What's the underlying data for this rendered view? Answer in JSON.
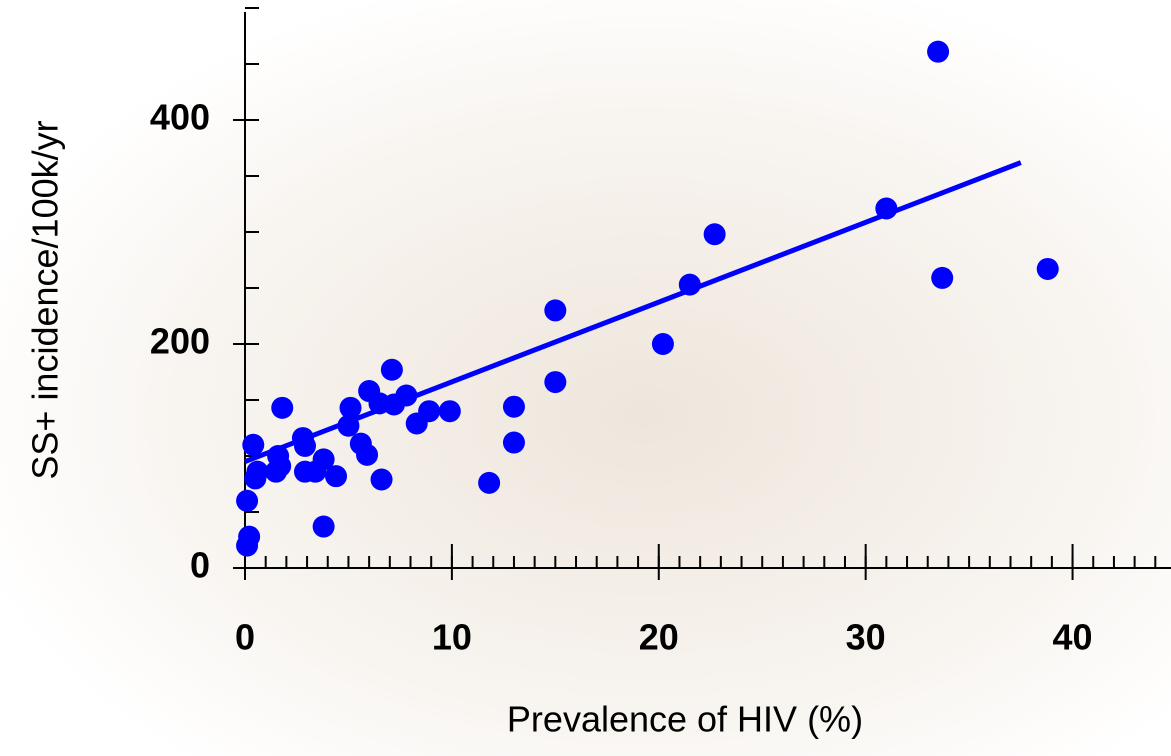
{
  "chart_data": {
    "type": "scatter",
    "xlabel": "Prevalence of HIV (%)",
    "ylabel": "SS+ incidence/100k/yr",
    "xlim": [
      0,
      45
    ],
    "ylim": [
      0,
      500
    ],
    "xticks": [
      0,
      10,
      20,
      30,
      40
    ],
    "yticks": [
      0,
      200,
      400
    ],
    "xminorticks": [
      0,
      1,
      2,
      3,
      4,
      5,
      6,
      7,
      8,
      9,
      10,
      11,
      12,
      13,
      14,
      15,
      16,
      17,
      18,
      19,
      20,
      21,
      22,
      23,
      24,
      25,
      26,
      27,
      28,
      29,
      30,
      31,
      32,
      33,
      34,
      35,
      36,
      37,
      38,
      39,
      40,
      41,
      42,
      43,
      44,
      45
    ],
    "yminorticks": [
      0,
      50,
      100,
      150,
      200,
      250,
      300,
      350,
      400,
      450,
      500
    ],
    "series": [
      {
        "color": "#0000ff",
        "x": [
          0.1,
          0.2,
          0.1,
          0.4,
          0.5,
          0.6,
          1.5,
          1.6,
          1.7,
          1.8,
          2.8,
          2.9,
          2.9,
          3.4,
          3.8,
          3.8,
          4.4,
          5.0,
          5.1,
          5.6,
          5.9,
          6.0,
          6.5,
          6.6,
          7.1,
          7.2,
          7.8,
          8.3,
          8.9,
          9.9,
          11.8,
          13.0,
          13.0,
          15.0,
          15.0,
          20.2,
          21.5,
          22.7,
          31.0,
          33.5,
          33.7,
          38.8
        ],
        "values": [
          20,
          28,
          60,
          110,
          80,
          86,
          86,
          100,
          91,
          143,
          116,
          109,
          86,
          86,
          97,
          37,
          82,
          127,
          143,
          111,
          101,
          158,
          147,
          79,
          177,
          146,
          154,
          129,
          140,
          140,
          76,
          144,
          112,
          166,
          230,
          200,
          253,
          298,
          321,
          461,
          259,
          267
        ]
      }
    ],
    "trendline": {
      "color": "#0000ff",
      "x": [
        0,
        37.5
      ],
      "values": [
        95,
        362
      ]
    }
  }
}
